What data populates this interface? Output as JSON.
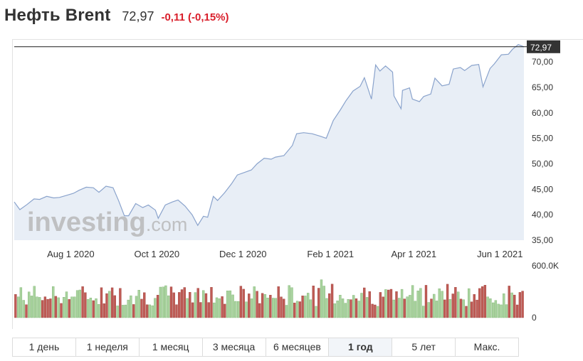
{
  "header": {
    "title": "Нефть Brent",
    "price": "72,97",
    "change": "-0,11 (-0,15%)"
  },
  "colors": {
    "line": "#8aa3cc",
    "area": "#e8eef6",
    "up_bar": "#a9d39e",
    "down_bar": "#bf5b55",
    "negative": "#d91e2a",
    "price_tag": "#333333"
  },
  "watermark": {
    "word": "investing",
    "domain": ".com"
  },
  "chart_data": {
    "type": "line",
    "ylim": [
      35,
      73.5
    ],
    "y_ticks": [
      "70,00",
      "65,00",
      "60,00",
      "55,00",
      "50,00",
      "45,00",
      "40,00",
      "35,00"
    ],
    "y_tick_values": [
      70,
      65,
      60,
      55,
      50,
      45,
      40,
      35
    ],
    "x_ticks": [
      "Aug 1 2020",
      "Oct 1 2020",
      "Dec 1 2020",
      "Feb 1 2021",
      "Apr 1 2021",
      "Jun 1 2021"
    ],
    "x_tick_dates": [
      "2020-08-01",
      "2020-10-01",
      "2020-12-01",
      "2021-02-01",
      "2021-04-01",
      "2021-06-01"
    ],
    "last_value": 72.97,
    "last_label": "72,97",
    "volume_labels": [
      "600.0K",
      "0"
    ],
    "series": [
      {
        "points": [
          [
            "2020-06-22",
            42.5
          ],
          [
            "2020-06-26",
            41.0
          ],
          [
            "2020-07-01",
            42.0
          ],
          [
            "2020-07-06",
            43.1
          ],
          [
            "2020-07-10",
            43.0
          ],
          [
            "2020-07-15",
            43.6
          ],
          [
            "2020-07-20",
            43.3
          ],
          [
            "2020-07-24",
            43.4
          ],
          [
            "2020-07-29",
            43.8
          ],
          [
            "2020-08-03",
            44.2
          ],
          [
            "2020-08-07",
            44.8
          ],
          [
            "2020-08-12",
            45.4
          ],
          [
            "2020-08-17",
            45.3
          ],
          [
            "2020-08-21",
            44.4
          ],
          [
            "2020-08-26",
            45.6
          ],
          [
            "2020-08-31",
            45.3
          ],
          [
            "2020-09-04",
            42.7
          ],
          [
            "2020-09-08",
            39.8
          ],
          [
            "2020-09-11",
            39.8
          ],
          [
            "2020-09-16",
            42.2
          ],
          [
            "2020-09-21",
            41.4
          ],
          [
            "2020-09-25",
            41.9
          ],
          [
            "2020-09-30",
            40.9
          ],
          [
            "2020-10-02",
            39.3
          ],
          [
            "2020-10-07",
            41.9
          ],
          [
            "2020-10-12",
            42.5
          ],
          [
            "2020-10-16",
            42.9
          ],
          [
            "2020-10-21",
            41.7
          ],
          [
            "2020-10-26",
            40.0
          ],
          [
            "2020-10-30",
            37.9
          ],
          [
            "2020-11-03",
            39.7
          ],
          [
            "2020-11-06",
            39.5
          ],
          [
            "2020-11-10",
            43.6
          ],
          [
            "2020-11-13",
            42.8
          ],
          [
            "2020-11-18",
            44.3
          ],
          [
            "2020-11-23",
            46.1
          ],
          [
            "2020-11-27",
            47.8
          ],
          [
            "2020-12-02",
            48.3
          ],
          [
            "2020-12-07",
            48.8
          ],
          [
            "2020-12-11",
            50.0
          ],
          [
            "2020-12-16",
            51.1
          ],
          [
            "2020-12-21",
            50.9
          ],
          [
            "2020-12-24",
            51.3
          ],
          [
            "2020-12-30",
            51.6
          ],
          [
            "2021-01-05",
            53.6
          ],
          [
            "2021-01-08",
            55.9
          ],
          [
            "2021-01-13",
            56.1
          ],
          [
            "2021-01-19",
            55.9
          ],
          [
            "2021-01-25",
            55.4
          ],
          [
            "2021-01-29",
            55.0
          ],
          [
            "2021-02-03",
            58.5
          ],
          [
            "2021-02-08",
            60.6
          ],
          [
            "2021-02-12",
            62.4
          ],
          [
            "2021-02-17",
            64.3
          ],
          [
            "2021-02-22",
            65.2
          ],
          [
            "2021-02-25",
            66.9
          ],
          [
            "2021-03-02",
            62.7
          ],
          [
            "2021-03-05",
            69.4
          ],
          [
            "2021-03-08",
            68.2
          ],
          [
            "2021-03-12",
            69.2
          ],
          [
            "2021-03-17",
            68.0
          ],
          [
            "2021-03-18",
            63.3
          ],
          [
            "2021-03-23",
            60.8
          ],
          [
            "2021-03-24",
            64.4
          ],
          [
            "2021-03-29",
            64.9
          ],
          [
            "2021-03-31",
            62.7
          ],
          [
            "2021-04-05",
            62.2
          ],
          [
            "2021-04-08",
            63.2
          ],
          [
            "2021-04-13",
            63.7
          ],
          [
            "2021-04-16",
            66.8
          ],
          [
            "2021-04-21",
            65.3
          ],
          [
            "2021-04-26",
            65.6
          ],
          [
            "2021-04-29",
            68.6
          ],
          [
            "2021-05-04",
            68.9
          ],
          [
            "2021-05-07",
            68.3
          ],
          [
            "2021-05-12",
            69.3
          ],
          [
            "2021-05-17",
            69.5
          ],
          [
            "2021-05-20",
            65.1
          ],
          [
            "2021-05-25",
            68.7
          ],
          [
            "2021-05-28",
            69.6
          ],
          [
            "2021-06-02",
            71.4
          ],
          [
            "2021-06-07",
            71.5
          ],
          [
            "2021-06-10",
            72.5
          ],
          [
            "2021-06-14",
            73.4
          ],
          [
            "2021-06-18",
            72.97
          ]
        ]
      }
    ]
  },
  "timeframe_tabs": [
    {
      "label": "1 день"
    },
    {
      "label": "1 неделя"
    },
    {
      "label": "1 месяц"
    },
    {
      "label": "3 месяца"
    },
    {
      "label": "6 месяцев"
    },
    {
      "label": "1 год",
      "active": true
    },
    {
      "label": "5 лет"
    },
    {
      "label": "Макс."
    }
  ]
}
